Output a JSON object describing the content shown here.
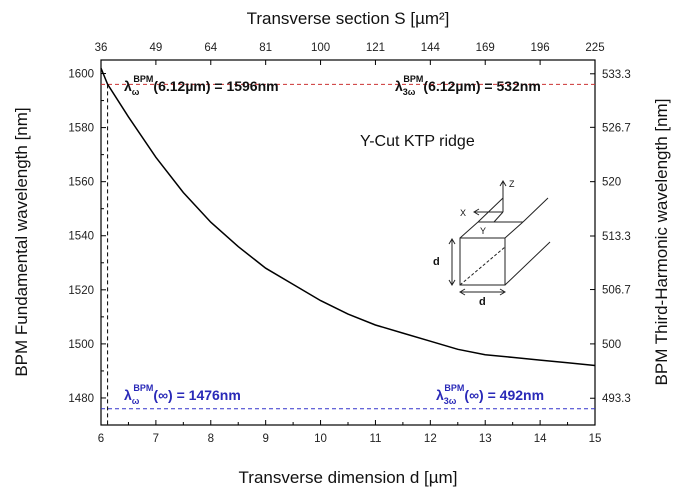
{
  "chart_data": {
    "type": "line",
    "title": "",
    "xlabel": "Transverse dimension d [µm]",
    "ylabel": "BPM Fundamental wavelength [nm]",
    "xlim": [
      6,
      15
    ],
    "ylim": [
      1470,
      1605
    ],
    "xticks": [
      "6",
      "7",
      "8",
      "9",
      "10",
      "11",
      "12",
      "13",
      "14",
      "15"
    ],
    "yticks": [
      "1480",
      "1500",
      "1520",
      "1540",
      "1560",
      "1580",
      "1600"
    ],
    "top_axis": {
      "label": "Transverse section S [µm²]",
      "ticks": [
        "36",
        "49",
        "64",
        "81",
        "100",
        "121",
        "144",
        "169",
        "196",
        "225"
      ]
    },
    "right_axis": {
      "label": "BPM Third-Harmonic wavelength [nm]",
      "ticks": [
        "493.3",
        "500",
        "506.7",
        "513.3",
        "520",
        "526.7",
        "533.3"
      ]
    },
    "series": [
      {
        "color": "#000000",
        "x": [
          6.0,
          6.12,
          6.5,
          7.0,
          7.5,
          8.0,
          8.5,
          9.0,
          9.5,
          10.0,
          10.5,
          11.0,
          11.5,
          12.0,
          12.5,
          13.0,
          13.5,
          14.0,
          14.5,
          15.0
        ],
        "y": [
          1602,
          1596,
          1584,
          1569,
          1556,
          1545,
          1536,
          1528,
          1522,
          1516,
          1511,
          1507,
          1504,
          1501,
          1498,
          1496,
          1495,
          1494,
          1493,
          1492
        ]
      }
    ],
    "reference_lines": [
      {
        "orientation": "horizontal",
        "value": 1596,
        "color": "#cc3333",
        "style": "dashed"
      },
      {
        "orientation": "horizontal",
        "value": 1476,
        "color": "#3333cc",
        "style": "dashed"
      },
      {
        "orientation": "vertical",
        "value": 6.12,
        "color": "#000000",
        "style": "dashed"
      }
    ],
    "annotations": {
      "top_left": {
        "sym": "λ",
        "sub": "ω",
        "sup": "BPM",
        "rest": "(6.12µm) = 1596nm"
      },
      "top_right": {
        "sym": "λ",
        "sub": "3ω",
        "sup": "BPM",
        "rest": "(6.12µm) = 532nm"
      },
      "bottom_left": {
        "sym": "λ",
        "sub": "ω",
        "sup": "BPM",
        "rest": "(∞) = 1476nm"
      },
      "bottom_right": {
        "sym": "λ",
        "sub": "3ω",
        "sup": "BPM",
        "rest": "(∞) = 492nm"
      }
    },
    "inset": {
      "title": "Y-Cut KTP ridge",
      "axis_labels": [
        "Z",
        "X",
        "Y"
      ],
      "dim_labels": [
        "d",
        "d"
      ]
    },
    "grid": false
  }
}
